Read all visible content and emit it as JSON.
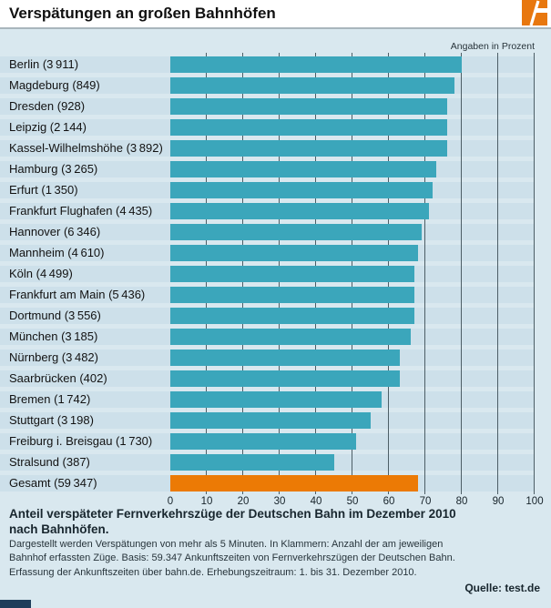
{
  "header": {
    "title": "Verspätungen an großen Bahnhöfen"
  },
  "units_note": "Angaben in Prozent",
  "chart_data": {
    "type": "bar",
    "orientation": "horizontal",
    "title": "Verspätungen an großen Bahnhöfen",
    "value_unit": "Prozent",
    "xlim": [
      0,
      100
    ],
    "x_ticks": [
      0,
      10,
      20,
      30,
      40,
      50,
      60,
      70,
      80,
      90,
      100
    ],
    "grid": true,
    "bar_color": "#3ba6bb",
    "highlight_color": "#ec7a05",
    "rows": [
      {
        "station": "Berlin",
        "count": "3 911",
        "value": 80
      },
      {
        "station": "Magdeburg",
        "count": "849",
        "value": 78
      },
      {
        "station": "Dresden",
        "count": "928",
        "value": 76
      },
      {
        "station": "Leipzig",
        "count": "2 144",
        "value": 76
      },
      {
        "station": "Kassel-Wilhelmshöhe",
        "count": "3 892",
        "value": 76
      },
      {
        "station": "Hamburg",
        "count": "3 265",
        "value": 73
      },
      {
        "station": "Erfurt",
        "count": "1 350",
        "value": 72
      },
      {
        "station": "Frankfurt Flughafen",
        "count": "4 435",
        "value": 71
      },
      {
        "station": "Hannover",
        "count": "6 346",
        "value": 69
      },
      {
        "station": "Mannheim",
        "count": "4 610",
        "value": 68
      },
      {
        "station": "Köln",
        "count": "4 499",
        "value": 67
      },
      {
        "station": "Frankfurt am Main",
        "count": "5 436",
        "value": 67
      },
      {
        "station": "Dortmund",
        "count": "3 556",
        "value": 67
      },
      {
        "station": "München",
        "count": "3 185",
        "value": 66
      },
      {
        "station": "Nürnberg",
        "count": "3 482",
        "value": 63
      },
      {
        "station": "Saarbrücken",
        "count": "402",
        "value": 63
      },
      {
        "station": "Bremen",
        "count": "1 742",
        "value": 58
      },
      {
        "station": "Stuttgart",
        "count": "3 198",
        "value": 55
      },
      {
        "station": "Freiburg i. Breisgau",
        "count": "1 730",
        "value": 51
      },
      {
        "station": "Stralsund",
        "count": "387",
        "value": 45
      },
      {
        "station": "Gesamt",
        "count": "59 347",
        "value": 68,
        "highlight": true
      }
    ]
  },
  "footer": {
    "heading_line1": "Anteil verspäteter Fernverkehrszüge der Deutschen Bahn im Dezember 2010",
    "heading_line2": "nach Bahnhöfen.",
    "note_lines": [
      "Dargestellt werden Verspätungen von mehr als 5 Minuten. In Klammern: Anzahl der am jeweiligen",
      "Bahnhof erfassten Züge. Basis: 59.347 Ankunftszeiten von Fernverkehrszügen der Deutschen Bahn.",
      "Erfassung der Ankunftszeiten über bahn.de. Erhebungszeitraum: 1. bis 31. Dezember 2010."
    ],
    "source": "Quelle: test.de"
  }
}
